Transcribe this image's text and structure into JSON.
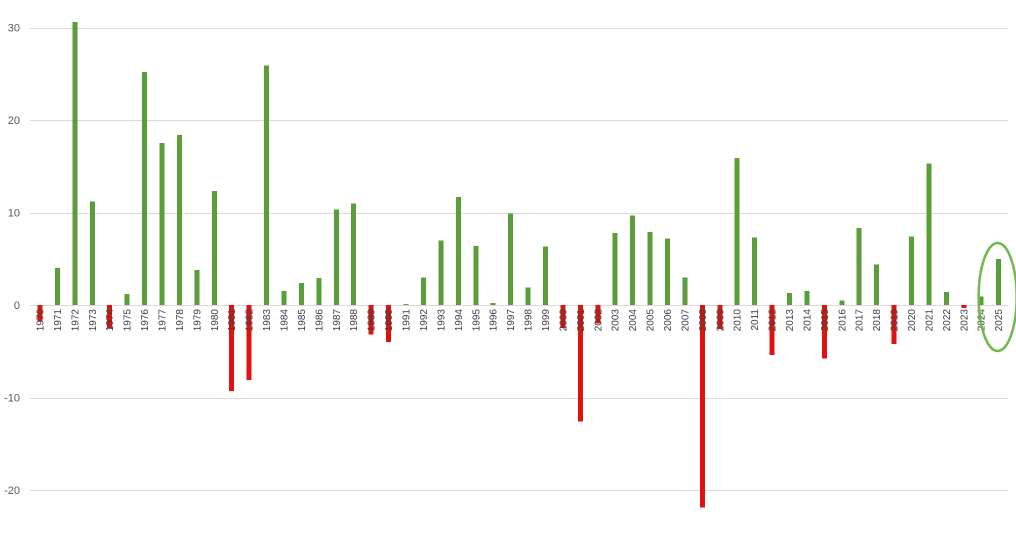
{
  "chart_data": {
    "type": "bar",
    "title": "",
    "xlabel": "",
    "ylabel": "",
    "ylim": [
      -22,
      31
    ],
    "yticks": [
      30,
      20,
      10,
      0,
      -10,
      -20
    ],
    "grid": true,
    "legend": "none",
    "colors": {
      "positive": "#5a9e3a",
      "negative": "#e0120f",
      "highlight_ring": "#70b84d",
      "grid": "#d9d9d9",
      "tick_text": "#595959"
    },
    "highlight": "2025",
    "categories": [
      "1970",
      "1971",
      "1972",
      "1973",
      "1974",
      "1975",
      "1976",
      "1977",
      "1978",
      "1979",
      "1980",
      "1981",
      "1982",
      "1983",
      "1984",
      "1985",
      "1986",
      "1987",
      "1988",
      "1989",
      "1990",
      "1991",
      "1992",
      "1993",
      "1994",
      "1995",
      "1996",
      "1997",
      "1998",
      "1999",
      "2000",
      "2001",
      "2002",
      "2003",
      "2004",
      "2005",
      "2006",
      "2007",
      "2008",
      "2009",
      "2010",
      "2011",
      "2012",
      "2013",
      "2014",
      "2015",
      "2016",
      "2017",
      "2018",
      "2019",
      "2020",
      "2021",
      "2022",
      "2023",
      "2024",
      "2025"
    ],
    "values": [
      -1.8,
      4.0,
      30.6,
      11.2,
      -2.5,
      1.2,
      25.2,
      17.5,
      18.4,
      3.8,
      12.3,
      -9.3,
      -8.1,
      25.9,
      1.5,
      2.4,
      2.9,
      10.3,
      11.0,
      -3.2,
      -4.0,
      0.1,
      3.0,
      7.0,
      11.7,
      6.4,
      0.2,
      9.9,
      1.9,
      6.3,
      -2.5,
      -12.6,
      -2.0,
      7.8,
      9.7,
      7.9,
      7.2,
      3.0,
      -21.9,
      -2.6,
      15.9,
      7.3,
      -5.4,
      1.3,
      1.5,
      -5.8,
      0.5,
      8.3,
      4.4,
      -4.2,
      7.4,
      15.3,
      1.4,
      -0.3,
      0.9,
      5.0
    ]
  }
}
